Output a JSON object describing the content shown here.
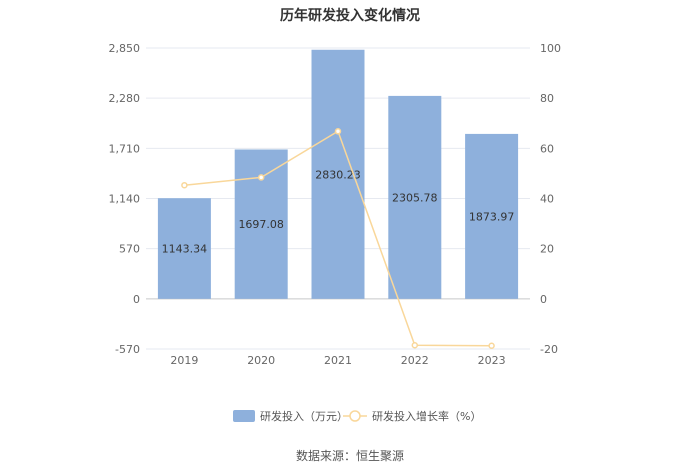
{
  "title": "历年研发投入变化情况",
  "source": "数据来源：恒生聚源",
  "colors": {
    "bar": "#8eb0dc",
    "line": "#f9d79a",
    "grid": "#e6e9f0",
    "axis": "#cccccc"
  },
  "chart_data": {
    "type": "bar",
    "categories": [
      "2019",
      "2020",
      "2021",
      "2022",
      "2023"
    ],
    "series": [
      {
        "name": "研发投入（万元）",
        "type": "bar",
        "axis": "left",
        "values": [
          1143.34,
          1697.08,
          2830.23,
          2305.78,
          1873.97
        ],
        "labels": [
          "1143.34",
          "1697.08",
          "2830.23",
          "2305.78",
          "1873.97"
        ]
      },
      {
        "name": "研发投入增长率（%）",
        "type": "line",
        "axis": "right",
        "values": [
          45.3,
          48.4,
          66.8,
          -18.5,
          -18.7
        ]
      }
    ],
    "y_left": {
      "min": -570,
      "max": 2850,
      "ticks": [
        "-570",
        "0",
        "570",
        "1,140",
        "1,710",
        "2,280",
        "2,850"
      ]
    },
    "y_right": {
      "min": -20,
      "max": 100,
      "ticks": [
        "-20",
        "0",
        "20",
        "40",
        "60",
        "80",
        "100"
      ]
    },
    "grid": true,
    "legend_position": "bottom"
  }
}
